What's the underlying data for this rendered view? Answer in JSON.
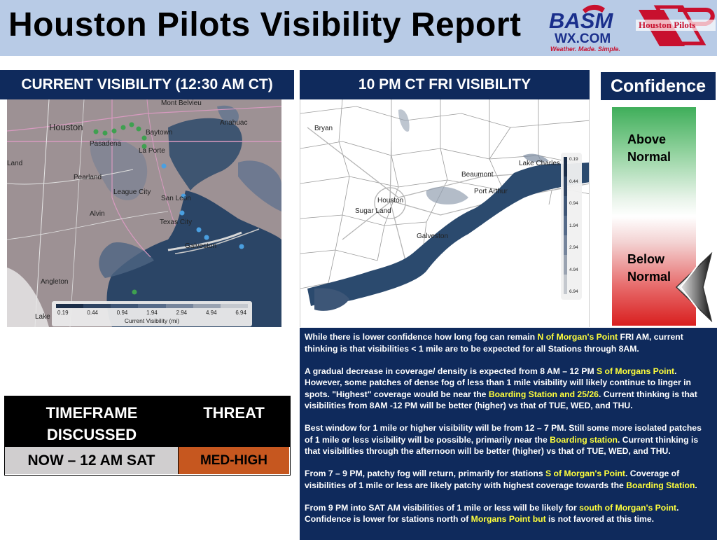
{
  "header": {
    "title": "Houston Pilots Visibility Report"
  },
  "logos": {
    "basm": {
      "line1": "BASM",
      "line2": "WX.COM",
      "tagline": "Weather. Made. Simple."
    },
    "pilots": {
      "text": "Houston Pilots"
    }
  },
  "left_panel": {
    "title": "CURRENT VISIBILITY (12:30 AM CT)",
    "places": [
      "Mont Belvieu",
      "Houston",
      "Baytown",
      "Anahuac",
      "Pasadena",
      "La Porte",
      "Land",
      "Pearland",
      "League City",
      "San Leon",
      "Alvin",
      "Texas City",
      "Galveston",
      "Angleton",
      "Lake"
    ],
    "legend": {
      "values": [
        "0.19",
        "0.44",
        "0.94",
        "1.94",
        "2.94",
        "4.94",
        "6.94"
      ],
      "title": "Current Visibility (mi)"
    }
  },
  "right_panel": {
    "title": "10 PM CT FRI VISIBILITY",
    "places": [
      "Bryan",
      "Lake Charles",
      "Beaumont",
      "Port Arthur",
      "Houston",
      "Sugar Land",
      "Galveston"
    ],
    "legend": {
      "values": [
        "0.19",
        "0.44",
        "0.94",
        "1.94",
        "2.94",
        "4.94",
        "6.94"
      ]
    }
  },
  "confidence": {
    "title": "Confidence",
    "above": "Above Normal",
    "below": "Below Normal",
    "level": "below-normal"
  },
  "threat_table": {
    "header_timeframe": "TIMEFRAME DISCUSSED",
    "header_threat": "THREAT",
    "timeframe": "NOW – 12 AM SAT",
    "threat": "MED-HIGH",
    "threat_color": "#c6571f"
  },
  "discussion": {
    "p1": [
      "While there is lower confidence how long fog can remain ",
      "N of Morgan's Point",
      " FRI AM, current thinking is that visibilities < 1 mile are to be expected for all Stations through 8AM."
    ],
    "p2": [
      "A gradual decrease in coverage/ density is expected from 8 AM – 12 PM ",
      "S of Morgans Point",
      ". However, some patches of dense fog of less than 1 mile visibility will likely continue to linger in spots. \"Highest\" coverage would be near the ",
      "Boarding Station and 25/26",
      ". Current thinking is that visibilities from 8AM -12 PM will be better (higher) vs that of TUE, WED, and THU."
    ],
    "p3": [
      "Best window for 1 mile or higher visibility will be from 12 – 7 PM.  Still some more isolated patches of 1 mile or less visibility will be possible, primarily near the ",
      "Boarding station",
      ".  Current thinking is that visibilities through the afternoon will be better (higher) vs that of TUE, WED, and THU."
    ],
    "p4": [
      "From 7 – 9 PM, patchy fog will return, primarily for stations ",
      "S of Morgan's Point",
      ".  Coverage of visibilities of 1 mile or less are likely patchy with highest coverage towards the ",
      "Boarding Station",
      "."
    ],
    "p5": [
      "From 9 PM into SAT AM visibilities of 1 mile or less will be likely for ",
      "south of Morgan's Point",
      ". Confidence is lower for stations north of ",
      "Morgans Point but",
      " is not favored at this time."
    ]
  }
}
